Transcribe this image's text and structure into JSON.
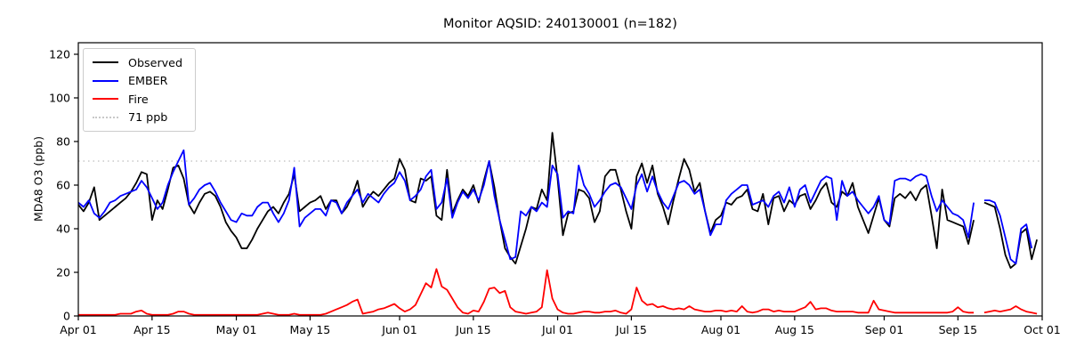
{
  "chart_data": {
    "type": "line",
    "title": "Monitor AQSID: 240130001 (n=182)",
    "xlabel": "",
    "ylabel": "MDA8 O3 (ppb)",
    "ylim": [
      0,
      125.3
    ],
    "yticks": [
      0,
      20,
      40,
      60,
      80,
      100,
      120
    ],
    "x_total_days": 183,
    "x_range": [
      "Apr 01",
      "Oct 01"
    ],
    "xtick_days": [
      0,
      14,
      30,
      44,
      61,
      75,
      91,
      105,
      122,
      136,
      153,
      167,
      183
    ],
    "xtick_labels": [
      "Apr 01",
      "Apr 15",
      "May 01",
      "May 15",
      "Jun 01",
      "Jun 15",
      "Jul 01",
      "Jul 15",
      "Aug 01",
      "Aug 15",
      "Sep 01",
      "Sep 15",
      "Oct 01"
    ],
    "grid": false,
    "legend_position": "upper left",
    "missing_day": "Sep 19",
    "threshold": {
      "value": 71,
      "label": "71 ppb",
      "color": "#c8c8c8",
      "style": "dotted"
    },
    "series": [
      {
        "name": "Observed",
        "color": "#000000",
        "values": [
          51,
          48,
          52,
          59,
          44,
          46,
          48,
          50,
          52,
          54,
          57,
          61,
          66,
          65,
          44,
          53,
          49,
          58,
          68,
          69,
          63,
          51,
          47,
          52,
          56,
          57,
          55,
          50,
          43,
          39,
          36,
          31,
          31,
          35,
          40,
          44,
          48,
          50,
          47,
          52,
          56,
          65,
          48,
          50,
          52,
          53,
          55,
          49,
          53,
          53,
          47,
          50,
          55,
          62,
          50,
          54,
          57,
          55,
          58,
          61,
          63,
          72,
          67,
          53,
          52,
          63,
          62,
          64,
          46,
          44,
          67,
          47,
          53,
          58,
          55,
          60,
          52,
          62,
          71,
          59,
          44,
          31,
          27,
          24,
          32,
          40,
          50,
          49,
          58,
          53,
          84,
          63,
          37,
          47,
          48,
          58,
          57,
          54,
          43,
          48,
          64,
          67,
          67,
          58,
          48,
          40,
          64,
          70,
          61,
          69,
          56,
          50,
          42,
          53,
          63,
          72,
          67,
          57,
          61,
          48,
          38,
          44,
          46,
          52,
          51,
          54,
          55,
          58,
          49,
          48,
          56,
          42,
          54,
          55,
          48,
          53,
          51,
          55,
          56,
          49,
          53,
          58,
          61,
          52,
          50,
          57,
          55,
          61,
          50,
          44,
          38,
          46,
          54,
          44,
          41,
          54,
          56,
          54,
          57,
          53,
          58,
          60,
          46,
          31,
          58,
          44,
          43,
          42,
          41,
          33,
          44,
          null,
          52,
          51,
          50,
          40,
          28,
          22,
          24,
          38,
          40,
          26,
          35
        ]
      },
      {
        "name": "EMBER",
        "color": "#0000ff",
        "values": [
          52,
          50,
          53,
          47,
          45,
          48,
          52,
          53,
          55,
          56,
          57,
          58,
          62,
          59,
          54,
          49,
          52,
          60,
          66,
          71,
          76,
          51,
          54,
          58,
          60,
          61,
          57,
          52,
          48,
          44,
          43,
          47,
          46,
          46,
          50,
          52,
          52,
          47,
          43,
          47,
          53,
          68,
          41,
          45,
          47,
          49,
          49,
          46,
          53,
          52,
          47,
          52,
          55,
          58,
          52,
          56,
          54,
          52,
          56,
          59,
          61,
          66,
          62,
          53,
          55,
          58,
          64,
          67,
          49,
          52,
          63,
          45,
          52,
          57,
          54,
          58,
          53,
          60,
          71,
          55,
          44,
          35,
          26,
          27,
          48,
          46,
          50,
          48,
          52,
          50,
          69,
          65,
          45,
          48,
          47,
          69,
          60,
          56,
          50,
          53,
          57,
          60,
          61,
          59,
          54,
          49,
          60,
          65,
          57,
          64,
          57,
          52,
          49,
          55,
          61,
          62,
          60,
          56,
          58,
          48,
          37,
          42,
          42,
          53,
          56,
          58,
          60,
          60,
          51,
          52,
          53,
          50,
          55,
          57,
          52,
          59,
          50,
          58,
          60,
          52,
          57,
          62,
          64,
          63,
          44,
          62,
          55,
          57,
          53,
          50,
          47,
          50,
          55,
          44,
          42,
          62,
          63,
          63,
          62,
          64,
          65,
          64,
          55,
          48,
          53,
          50,
          47,
          46,
          44,
          36,
          52,
          null,
          53,
          53,
          52,
          46,
          36,
          26,
          24,
          40,
          42,
          31,
          null
        ]
      },
      {
        "name": "Fire",
        "color": "#ff0000",
        "values": [
          0.5,
          0.5,
          0.5,
          0.5,
          0.5,
          0.5,
          0.5,
          0.5,
          1,
          1,
          1,
          2,
          2.5,
          1,
          0.5,
          0.5,
          0.5,
          0.5,
          1,
          2,
          2,
          1,
          0.5,
          0.5,
          0.5,
          0.5,
          0.5,
          0.5,
          0.5,
          0.5,
          0.5,
          0.5,
          0.5,
          0.5,
          0.5,
          1,
          1.5,
          1,
          0.5,
          0.5,
          0.5,
          1,
          0.5,
          0.5,
          0.5,
          0.5,
          0.5,
          1,
          2,
          3,
          4,
          5,
          6.5,
          7.5,
          1,
          1.5,
          2,
          3,
          3.5,
          4.5,
          5.5,
          3.5,
          2,
          3,
          5,
          10,
          15,
          13,
          21.5,
          13.5,
          12,
          8,
          4,
          1.5,
          1,
          2.5,
          2,
          6.5,
          12.5,
          13,
          10.5,
          11.5,
          4,
          2,
          1.5,
          1,
          1.5,
          2,
          4,
          21,
          8,
          3,
          1.5,
          1,
          1,
          1.5,
          2,
          2,
          1.5,
          1.5,
          2,
          2,
          2.5,
          1.5,
          1,
          3,
          13,
          7,
          5,
          5.5,
          4,
          4.5,
          3.5,
          3,
          3.5,
          3,
          4.5,
          3,
          2.5,
          2,
          2,
          2.5,
          2.5,
          2,
          2.5,
          2,
          4.5,
          2,
          1.5,
          2,
          3,
          3,
          2,
          2.5,
          2,
          2,
          2,
          3,
          4,
          6.5,
          3,
          3.5,
          3.5,
          2.5,
          2,
          2,
          2,
          2,
          1.5,
          1.5,
          1.5,
          7,
          3,
          2.5,
          2,
          1.5,
          1.5,
          1.5,
          1.5,
          1.5,
          1.5,
          1.5,
          1.5,
          1.5,
          1.5,
          1.5,
          2,
          4,
          2,
          1.5,
          1.5,
          null,
          1.5,
          2,
          2.5,
          2,
          2.5,
          3,
          4.5,
          3,
          2,
          1.5,
          1
        ]
      }
    ]
  }
}
